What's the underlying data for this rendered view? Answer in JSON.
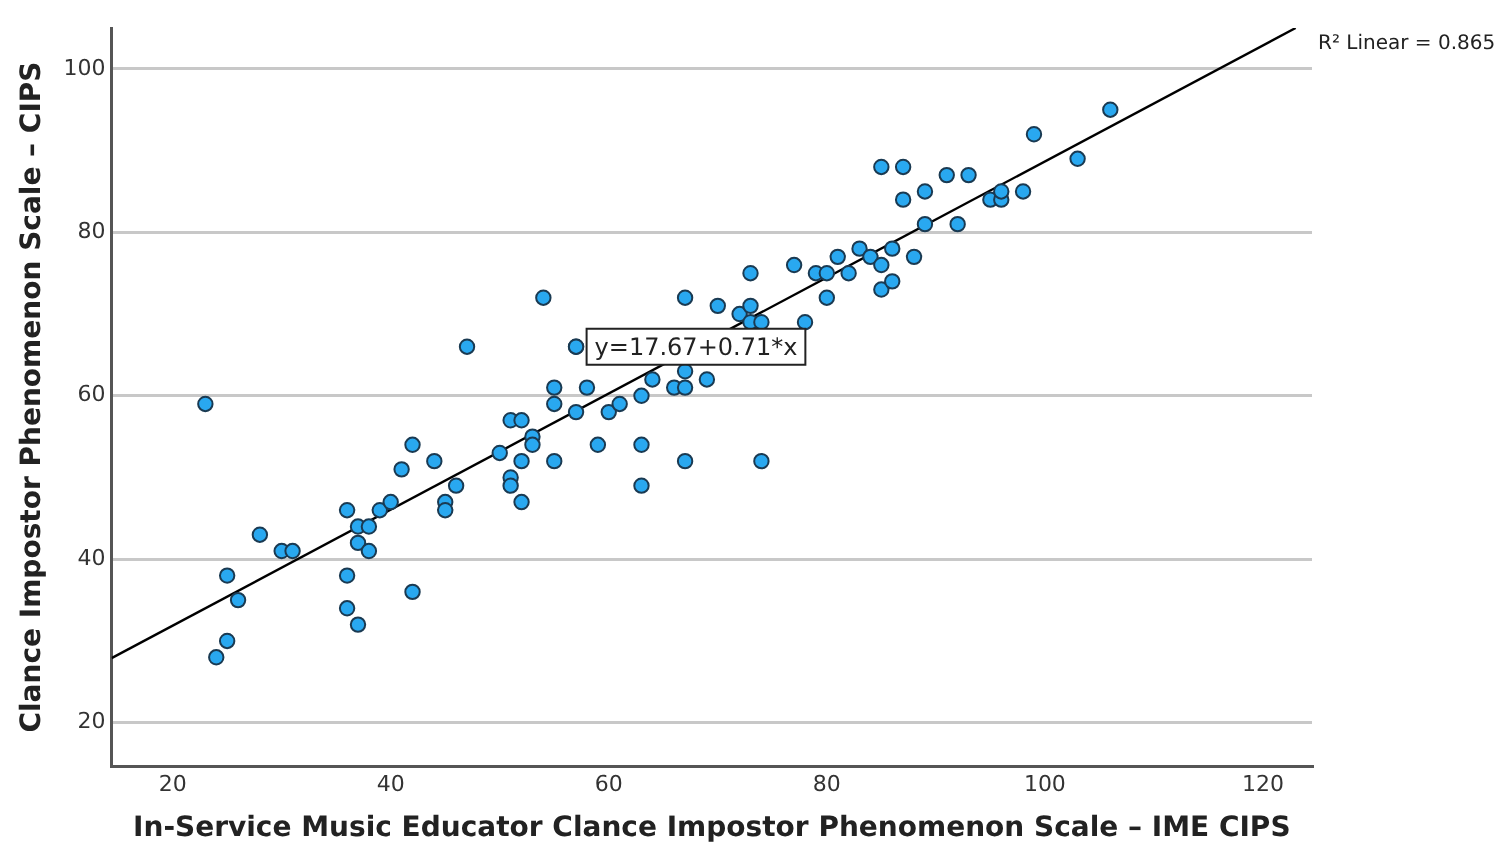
{
  "chart_data": {
    "type": "scatter",
    "xlabel": "In-Service Music Educator Clance Impostor Phenomenon Scale – IME CIPS",
    "ylabel": "Clance Impostor Phenomenon Scale – CIPS",
    "xlim": [
      14.4,
      124.5
    ],
    "ylim": [
      14.7,
      105
    ],
    "xticks": [
      20,
      40,
      60,
      80,
      100,
      120
    ],
    "yticks": [
      20,
      40,
      60,
      80,
      100
    ],
    "grid": "y",
    "legend": false,
    "series": [
      {
        "color": "#29a8f0",
        "marker": "circle",
        "x": [
          23,
          24,
          25,
          25,
          26,
          28,
          30,
          31,
          36,
          36,
          36,
          37,
          37,
          37,
          38,
          38,
          39,
          40,
          41,
          42,
          42,
          44,
          45,
          45,
          46,
          47,
          50,
          51,
          51,
          51,
          52,
          52,
          52,
          53,
          53,
          54,
          55,
          55,
          55,
          57,
          57,
          57,
          58,
          59,
          60,
          61,
          63,
          63,
          63,
          64,
          66,
          67,
          67,
          67,
          67,
          69,
          70,
          72,
          73,
          73,
          73,
          74,
          74,
          77,
          78,
          79,
          80,
          80,
          81,
          82,
          83,
          84,
          85,
          85,
          85,
          86,
          86,
          87,
          87,
          88,
          89,
          89,
          91,
          92,
          93,
          95,
          96,
          96,
          98,
          99,
          103,
          106
        ],
        "values": [
          59,
          28,
          38,
          30,
          35,
          43,
          41,
          41,
          46,
          38,
          34,
          44,
          42,
          32,
          44,
          41,
          46,
          47,
          51,
          54,
          36,
          52,
          47,
          46,
          49,
          66,
          53,
          57,
          50,
          49,
          57,
          52,
          47,
          55,
          54,
          72,
          61,
          59,
          52,
          66,
          58,
          66,
          61,
          54,
          58,
          59,
          60,
          54,
          49,
          62,
          61,
          63,
          61,
          52,
          72,
          62,
          71,
          70,
          71,
          69,
          75,
          69,
          52,
          76,
          69,
          75,
          75,
          72,
          77,
          75,
          78,
          77,
          76,
          73,
          88,
          78,
          74,
          88,
          84,
          77,
          85,
          81,
          87,
          81,
          87,
          84,
          84,
          85,
          85,
          92,
          89,
          95
        ]
      },
      {
        "type": "line",
        "color": "#000000",
        "marker": "none",
        "line_style": "solid",
        "x": [
          14.4,
          123
        ],
        "values": [
          27.9,
          105
        ]
      }
    ],
    "annotations": [
      {
        "text": "y=17.67+0.71*x",
        "x": 68,
        "y": 66
      },
      "R² Linear = 0.865"
    ]
  }
}
